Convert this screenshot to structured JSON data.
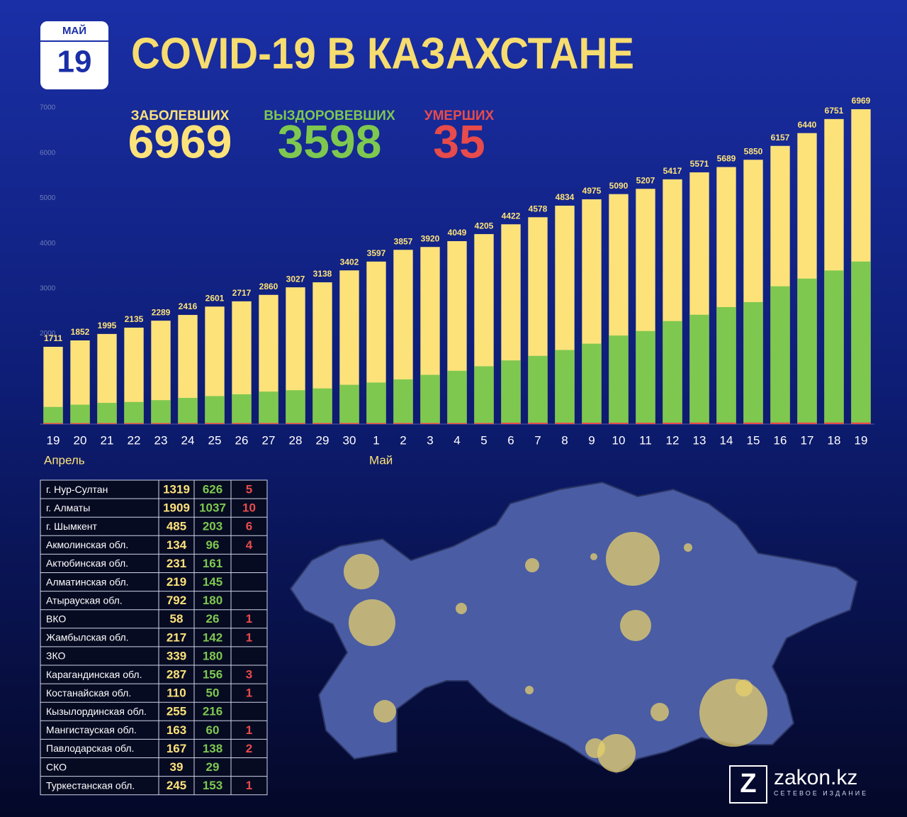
{
  "header": {
    "month": "МАЙ",
    "day": "19",
    "title": "COVID-19 В КАЗАХСТАНЕ"
  },
  "chart_data": {
    "type": "bar",
    "categories": [
      "19",
      "20",
      "21",
      "22",
      "23",
      "24",
      "25",
      "26",
      "27",
      "28",
      "29",
      "30",
      "1",
      "2",
      "3",
      "4",
      "5",
      "6",
      "7",
      "8",
      "9",
      "10",
      "11",
      "12",
      "13",
      "14",
      "15",
      "16",
      "17",
      "18",
      "19"
    ],
    "month_labels": [
      "Апрель",
      "Май"
    ],
    "series": [
      {
        "name": "ЗАБОЛЕВШИХ",
        "color": "#fde27a",
        "values": [
          1711,
          1852,
          1995,
          2135,
          2289,
          2416,
          2601,
          2717,
          2860,
          3027,
          3138,
          3402,
          3597,
          3857,
          3920,
          4049,
          4205,
          4422,
          4578,
          4834,
          4975,
          5090,
          5207,
          5417,
          5571,
          5689,
          5850,
          6157,
          6440,
          6751,
          6969
        ]
      },
      {
        "name": "ВЫЗДОРОВЕВШИХ",
        "color": "#7ec850",
        "values": [
          380,
          430,
          470,
          490,
          530,
          580,
          620,
          660,
          720,
          750,
          790,
          870,
          920,
          990,
          1090,
          1180,
          1280,
          1410,
          1510,
          1640,
          1780,
          1960,
          2060,
          2280,
          2420,
          2590,
          2700,
          3050,
          3220,
          3400,
          3598
        ]
      },
      {
        "name": "УМЕРШИХ",
        "color": "#e84b4b",
        "values": [
          17,
          17,
          19,
          19,
          19,
          19,
          25,
          25,
          25,
          25,
          25,
          25,
          25,
          25,
          25,
          25,
          25,
          31,
          31,
          31,
          31,
          31,
          31,
          32,
          34,
          34,
          34,
          35,
          35,
          35,
          35
        ]
      }
    ],
    "ylim": [
      0,
      7000
    ],
    "yticks": [
      2000,
      3000,
      4000,
      5000,
      6000,
      7000
    ]
  },
  "table": {
    "rows": [
      [
        "г. Нур-Султан",
        1319,
        626,
        5
      ],
      [
        "г. Алматы",
        1909,
        1037,
        10
      ],
      [
        "г. Шымкент",
        485,
        203,
        6
      ],
      [
        "Акмолинская обл.",
        134,
        96,
        4
      ],
      [
        "Актюбинская обл.",
        231,
        161,
        null
      ],
      [
        "Алматинская обл.",
        219,
        145,
        null
      ],
      [
        "Атырауская обл.",
        792,
        180,
        null
      ],
      [
        "ВКО",
        58,
        26,
        1
      ],
      [
        "Жамбылская обл.",
        217,
        142,
        1
      ],
      [
        "ЗКО",
        339,
        180,
        null
      ],
      [
        "Карагандинская обл.",
        287,
        156,
        3
      ],
      [
        "Костанайская обл.",
        110,
        50,
        1
      ],
      [
        "Кызылординская обл.",
        255,
        216,
        null
      ],
      [
        "Мангистауская обл.",
        163,
        60,
        1
      ],
      [
        "Павлодарская обл.",
        167,
        138,
        2
      ],
      [
        "СКО",
        39,
        29,
        null
      ],
      [
        "Туркестанская обл.",
        245,
        153,
        1
      ]
    ]
  },
  "logo": {
    "mark": "Z",
    "name": "zakon.kz",
    "tagline": "СЕТЕВОЕ ИЗДАНИЕ"
  }
}
